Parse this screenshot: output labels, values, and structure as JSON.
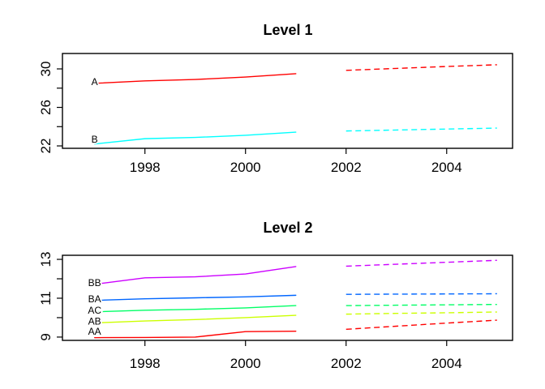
{
  "figure": {
    "background": "#ffffff",
    "text_color": "#000000"
  },
  "chart_data": [
    {
      "type": "line",
      "title": "Level 1",
      "xlabel": "",
      "ylabel": "",
      "grid": false,
      "legend_position": "inline-series-labels",
      "x_range": [
        1996.36,
        2005.31
      ],
      "y_range": [
        21.75,
        31.6
      ],
      "x_ticks": [
        {
          "v": 1998,
          "label": "1998"
        },
        {
          "v": 2000,
          "label": "2000"
        },
        {
          "v": 2002,
          "label": "2002"
        },
        {
          "v": 2004,
          "label": "2004"
        }
      ],
      "y_ticks": [
        {
          "v": 22,
          "label": "22"
        },
        {
          "v": 24,
          "label": ""
        },
        {
          "v": 26,
          "label": "26"
        },
        {
          "v": 28,
          "label": ""
        },
        {
          "v": 30,
          "label": "30"
        }
      ],
      "historical_years": [
        1997,
        1998,
        1999,
        2000,
        2001
      ],
      "forecast_years": [
        2002,
        2003,
        2004,
        2005
      ],
      "forecast_line_style": "dashed",
      "series": [
        {
          "name": "A",
          "color": "#FF0000",
          "historical": [
            28.5,
            28.75,
            28.9,
            29.15,
            29.5
          ],
          "forecast": [
            29.85,
            30.05,
            30.25,
            30.43
          ]
        },
        {
          "name": "B",
          "color": "#00FFFF",
          "historical": [
            22.2,
            22.75,
            22.88,
            23.1,
            23.43
          ],
          "forecast": [
            23.55,
            23.65,
            23.75,
            23.85
          ]
        }
      ]
    },
    {
      "type": "line",
      "title": "Level 2",
      "xlabel": "",
      "ylabel": "",
      "grid": false,
      "legend_position": "inline-series-labels",
      "x_range": [
        1996.36,
        2005.31
      ],
      "y_range": [
        8.83,
        13.21
      ],
      "x_ticks": [
        {
          "v": 1998,
          "label": "1998"
        },
        {
          "v": 2000,
          "label": "2000"
        },
        {
          "v": 2002,
          "label": "2002"
        },
        {
          "v": 2004,
          "label": "2004"
        }
      ],
      "y_ticks": [
        {
          "v": 9,
          "label": "9"
        },
        {
          "v": 10,
          "label": ""
        },
        {
          "v": 11,
          "label": "11"
        },
        {
          "v": 12,
          "label": ""
        },
        {
          "v": 13,
          "label": "13"
        }
      ],
      "historical_years": [
        1997,
        1998,
        1999,
        2000,
        2001
      ],
      "forecast_years": [
        2002,
        2003,
        2004,
        2005
      ],
      "forecast_line_style": "dashed",
      "series": [
        {
          "name": "BB",
          "color": "#CC00FF",
          "historical": [
            11.72,
            12.05,
            12.1,
            12.25,
            12.63
          ],
          "forecast": [
            12.65,
            12.75,
            12.85,
            12.95
          ]
        },
        {
          "name": "BA",
          "color": "#0066FF",
          "historical": [
            10.89,
            10.97,
            11.02,
            11.07,
            11.15
          ],
          "forecast": [
            11.2,
            11.21,
            11.22,
            11.23
          ]
        },
        {
          "name": "AC",
          "color": "#00FF66",
          "historical": [
            10.3,
            10.38,
            10.43,
            10.5,
            10.62
          ],
          "forecast": [
            10.62,
            10.64,
            10.66,
            10.68
          ]
        },
        {
          "name": "AB",
          "color": "#CCFF00",
          "historical": [
            9.73,
            9.83,
            9.9,
            10.0,
            10.12
          ],
          "forecast": [
            10.18,
            10.22,
            10.25,
            10.29
          ]
        },
        {
          "name": "AA",
          "color": "#FF0000",
          "historical": [
            8.97,
            8.98,
            9.0,
            9.28,
            9.3
          ],
          "forecast": [
            9.4,
            9.56,
            9.72,
            9.87
          ]
        }
      ]
    }
  ]
}
